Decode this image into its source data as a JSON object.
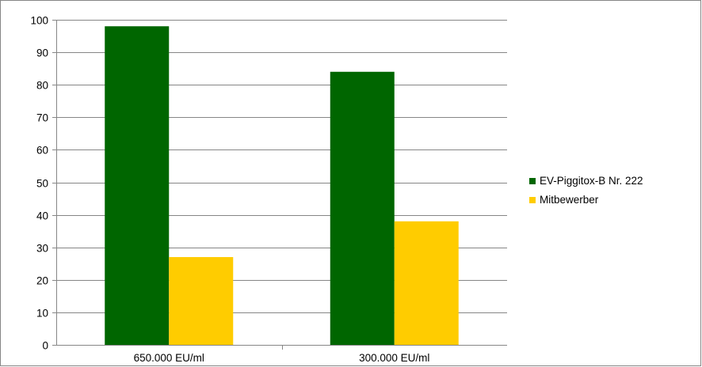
{
  "chart_data": {
    "type": "bar",
    "categories": [
      "650.000 EU/ml",
      "300.000 EU/ml"
    ],
    "series": [
      {
        "name": "EV-Piggitox-B Nr. 222",
        "values": [
          98,
          84
        ],
        "color": "#006600"
      },
      {
        "name": "Mitbewerber",
        "values": [
          27,
          38
        ],
        "color": "#FFCC00"
      }
    ],
    "title": "",
    "xlabel": "",
    "ylabel": "",
    "ylim": [
      0,
      100
    ],
    "yticks": [
      0,
      10,
      20,
      30,
      40,
      50,
      60,
      70,
      80,
      90,
      100
    ],
    "grid": true,
    "legend_position": "right",
    "colors": {
      "gridline": "#868686",
      "axis": "#868686",
      "frame": "#868686"
    }
  }
}
